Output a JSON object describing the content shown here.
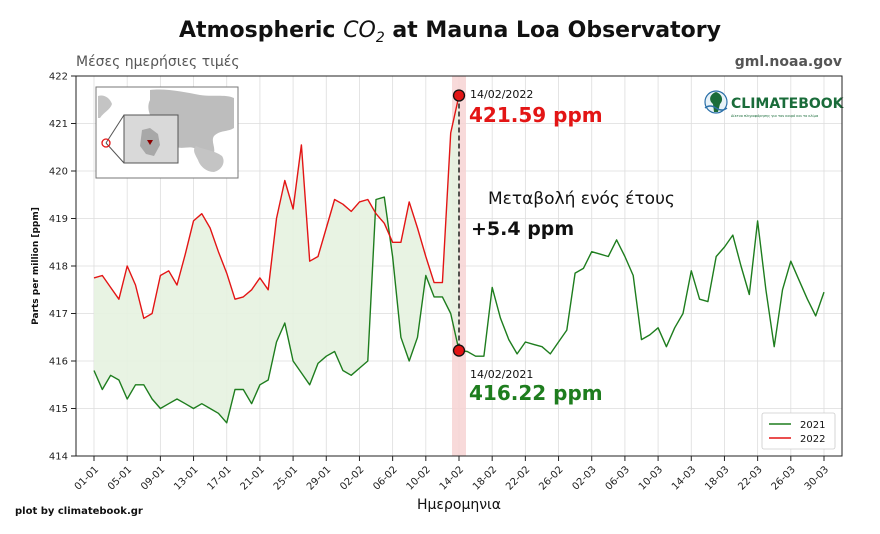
{
  "header": {
    "title_prefix": "Atmospheric ",
    "title_co": "CO",
    "title_sub2": "2",
    "title_suffix": " at Mauna Loa Observatory",
    "subtitle": "Μέσες ημερήσιες τιμές",
    "source": "gml.noaa.gov"
  },
  "credit": "plot by climatebook.gr",
  "logo": {
    "name": "CLIMATEBOOK",
    "tagline": "Δίκτυο πληροφόρησης για τον καιρό και το κλίμα"
  },
  "colors": {
    "s2021": "#1e7d1e",
    "s2022": "#e31515",
    "fill": "#e6f2e0",
    "band": "#f7d4d4"
  },
  "annotations": {
    "date_2022": "14/02/2022",
    "value_2022": "421.59 ppm",
    "date_2021": "14/02/2021",
    "value_2021": "416.22 ppm",
    "change_label": "Μεταβολή ενός έτους",
    "change_value": "+5.4 ppm"
  },
  "chart_data": {
    "type": "line",
    "title": "Atmospheric CO2 at Mauna Loa Observatory",
    "subtitle": "Μέσες ημερήσιες τιμές",
    "xlabel": "Ημερομηνια",
    "ylabel": "Parts per million [ppm]",
    "ylim": [
      414,
      422
    ],
    "yticks": [
      414,
      415,
      416,
      417,
      418,
      419,
      420,
      421,
      422
    ],
    "xlim": [
      0,
      89
    ],
    "xticks": [
      {
        "x": 0,
        "label": "01-01"
      },
      {
        "x": 4,
        "label": "05-01"
      },
      {
        "x": 8,
        "label": "09-01"
      },
      {
        "x": 12,
        "label": "13-01"
      },
      {
        "x": 16,
        "label": "17-01"
      },
      {
        "x": 20,
        "label": "21-01"
      },
      {
        "x": 24,
        "label": "25-01"
      },
      {
        "x": 28,
        "label": "29-01"
      },
      {
        "x": 32,
        "label": "02-02"
      },
      {
        "x": 36,
        "label": "06-02"
      },
      {
        "x": 40,
        "label": "10-02"
      },
      {
        "x": 44,
        "label": "14-02"
      },
      {
        "x": 48,
        "label": "18-02"
      },
      {
        "x": 52,
        "label": "22-02"
      },
      {
        "x": 56,
        "label": "26-02"
      },
      {
        "x": 60,
        "label": "02-03"
      },
      {
        "x": 64,
        "label": "06-03"
      },
      {
        "x": 68,
        "label": "10-03"
      },
      {
        "x": 72,
        "label": "14-03"
      },
      {
        "x": 76,
        "label": "18-03"
      },
      {
        "x": 80,
        "label": "22-03"
      },
      {
        "x": 84,
        "label": "26-03"
      },
      {
        "x": 88,
        "label": "30-03"
      }
    ],
    "legend": [
      {
        "name": "2021",
        "color": "#1e7d1e"
      },
      {
        "name": "2022",
        "color": "#e31515"
      }
    ],
    "legend_position": "bottom-right",
    "highlight": {
      "x": 44,
      "from": 416.22,
      "to": 421.59
    },
    "series": [
      {
        "name": "2021",
        "color": "#1e7d1e",
        "x": [
          0,
          1,
          2,
          3,
          4,
          5,
          6,
          7,
          8,
          9,
          10,
          11,
          12,
          13,
          14,
          15,
          16,
          17,
          18,
          19,
          20,
          21,
          22,
          23,
          24,
          25,
          26,
          27,
          28,
          29,
          30,
          31,
          32,
          33,
          34,
          35,
          36,
          37,
          38,
          39,
          40,
          41,
          42,
          43,
          44,
          45,
          46,
          47,
          48,
          49,
          50,
          51,
          52,
          53,
          54,
          55,
          56,
          57,
          58,
          59,
          60,
          61,
          62,
          63,
          64,
          65,
          66,
          67,
          68,
          69,
          70,
          71,
          72,
          73,
          74,
          75,
          76,
          77,
          78,
          79,
          80,
          81,
          82,
          83,
          84,
          85,
          86,
          87,
          88
        ],
        "values": [
          415.8,
          415.4,
          415.7,
          415.6,
          415.2,
          415.5,
          415.5,
          415.2,
          415.0,
          415.1,
          415.2,
          415.1,
          415.0,
          415.1,
          415.0,
          414.9,
          414.7,
          415.4,
          415.4,
          415.1,
          415.5,
          415.6,
          416.4,
          416.8,
          416.0,
          415.75,
          415.5,
          415.95,
          416.1,
          416.2,
          415.8,
          415.7,
          415.85,
          416.0,
          419.4,
          419.45,
          418.2,
          416.5,
          416.0,
          416.5,
          417.8,
          417.35,
          417.35,
          417.0,
          416.22,
          416.2,
          416.1,
          416.1,
          417.55,
          416.9,
          416.45,
          416.15,
          416.4,
          416.35,
          416.3,
          416.15,
          416.4,
          416.65,
          417.85,
          417.95,
          418.3,
          418.25,
          418.2,
          418.55,
          418.2,
          417.8,
          416.45,
          416.55,
          416.7,
          416.3,
          416.7,
          417.0,
          417.9,
          417.3,
          417.25,
          418.2,
          418.4,
          418.65,
          418.0,
          417.4,
          418.95,
          417.5,
          416.3,
          417.5,
          418.1,
          417.7,
          417.3,
          416.95,
          417.45
        ]
      },
      {
        "name": "2022",
        "color": "#e31515",
        "x": [
          0,
          1,
          2,
          3,
          4,
          5,
          6,
          7,
          8,
          9,
          10,
          11,
          12,
          13,
          14,
          15,
          16,
          17,
          18,
          19,
          20,
          21,
          22,
          23,
          24,
          25,
          26,
          27,
          28,
          29,
          30,
          31,
          32,
          33,
          34,
          35,
          36,
          37,
          38,
          39,
          40,
          41,
          42,
          43,
          44
        ],
        "values": [
          417.75,
          417.8,
          417.55,
          417.3,
          418.0,
          417.6,
          416.9,
          417.0,
          417.8,
          417.9,
          417.6,
          418.25,
          418.95,
          419.1,
          418.8,
          418.3,
          417.85,
          417.3,
          417.35,
          417.5,
          417.75,
          417.5,
          419.0,
          419.8,
          419.2,
          420.55,
          418.1,
          418.2,
          418.8,
          419.4,
          419.3,
          419.15,
          419.35,
          419.4,
          419.1,
          418.9,
          418.5,
          418.5,
          419.35,
          418.8,
          418.2,
          417.65,
          417.65,
          420.8,
          421.59
        ]
      }
    ]
  }
}
